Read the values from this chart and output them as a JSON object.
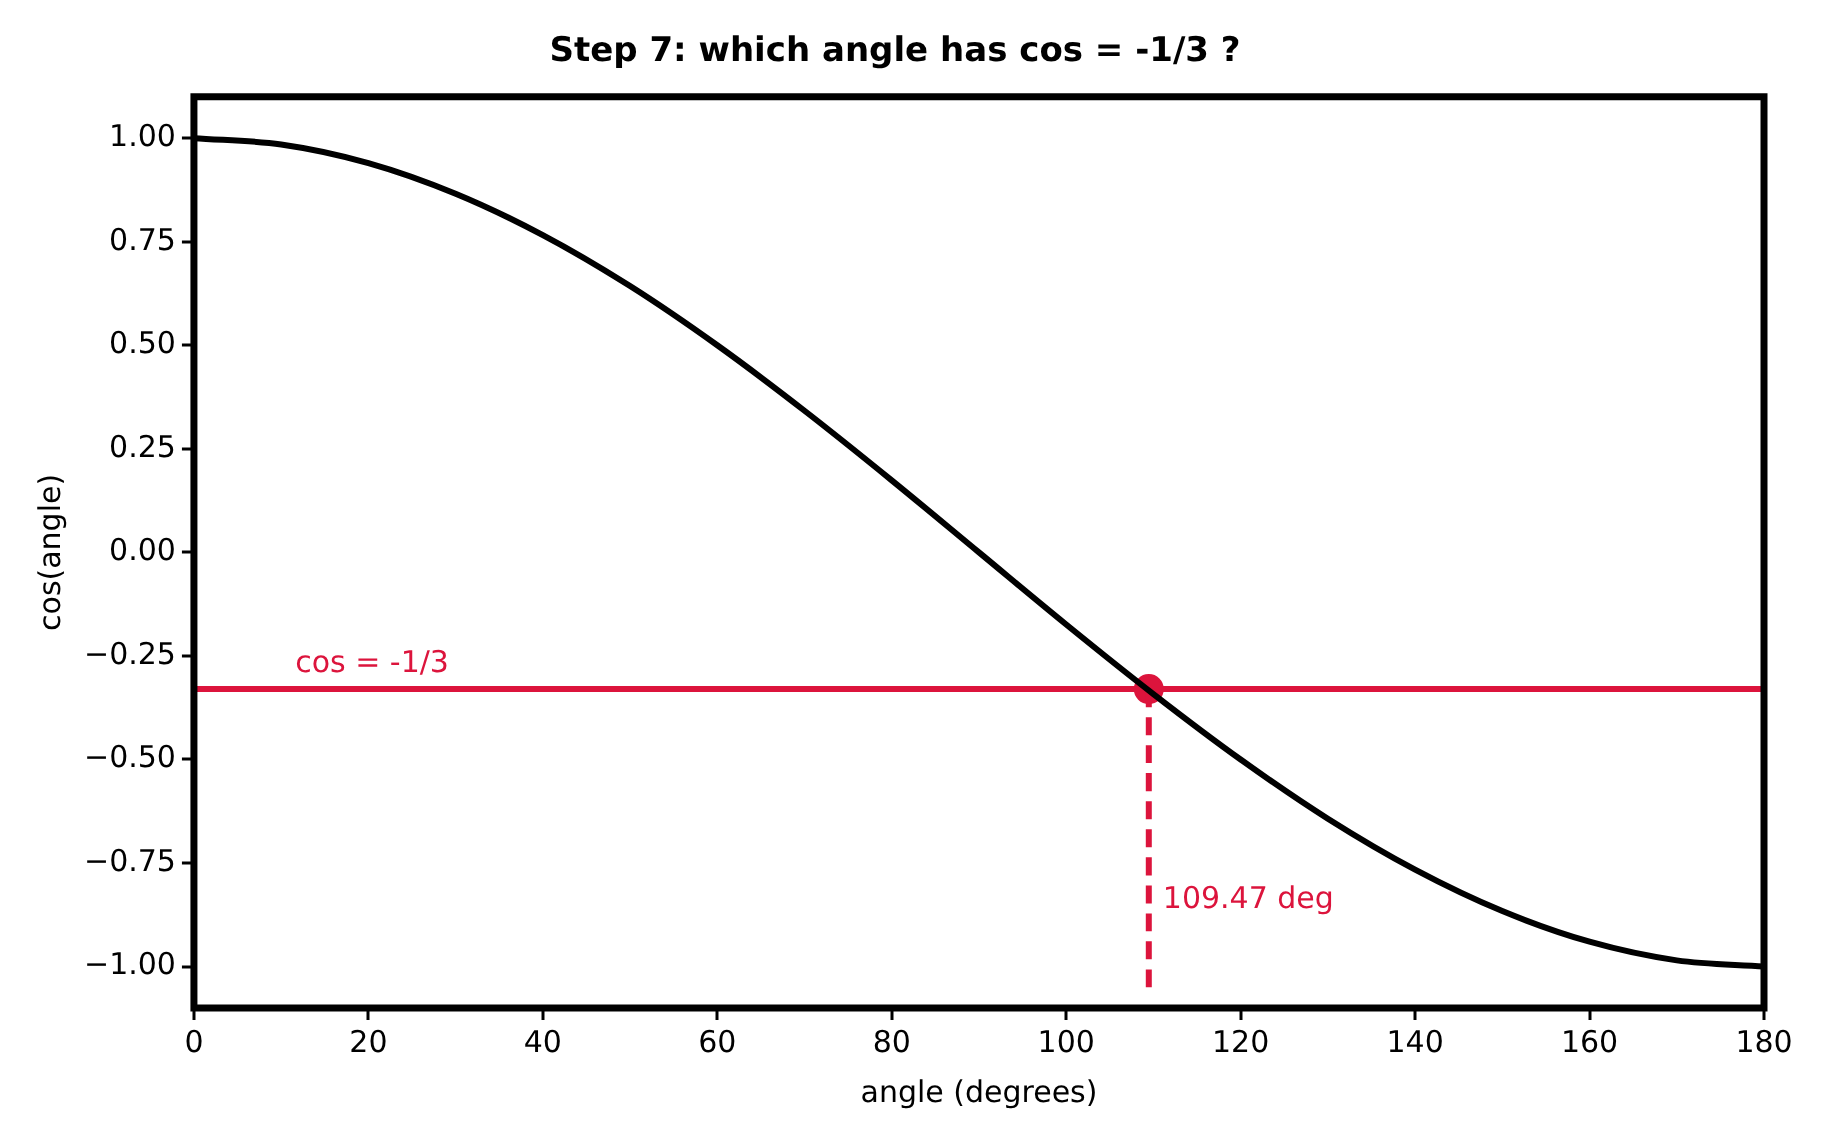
{
  "chart_data": {
    "type": "line",
    "title": "Step 7: which angle has cos = -1/3 ?",
    "xlabel": "angle (degrees)",
    "ylabel": "cos(angle)",
    "xlim": [
      0,
      180
    ],
    "xticks": [
      0,
      20,
      40,
      60,
      80,
      100,
      120,
      140,
      160,
      180
    ],
    "ylim": [
      -1.1,
      1.1
    ],
    "yticks": [
      {
        "value": -1,
        "label": "−1.00"
      },
      {
        "value": -0.75,
        "label": "−0.75"
      },
      {
        "value": -0.5,
        "label": "−0.50"
      },
      {
        "value": -0.25,
        "label": "−0.25"
      },
      {
        "value": 0,
        "label": "0.00"
      },
      {
        "value": 0.25,
        "label": "0.25"
      },
      {
        "value": 0.5,
        "label": "0.50"
      },
      {
        "value": 0.75,
        "label": "0.75"
      },
      {
        "value": 1,
        "label": "1.00"
      }
    ],
    "grid": false,
    "legend": false,
    "series": [
      {
        "type": "line",
        "color": "#000000",
        "marker": "none",
        "x": [
          0,
          10,
          20,
          30,
          40,
          50,
          60,
          70,
          80,
          90,
          100,
          110,
          120,
          130,
          140,
          150,
          160,
          170,
          180
        ],
        "values": [
          1,
          0.985,
          0.94,
          0.866,
          0.766,
          0.643,
          0.5,
          0.342,
          0.174,
          0,
          -0.174,
          -0.342,
          -0.5,
          -0.643,
          -0.766,
          -0.866,
          -0.94,
          -0.985,
          -1
        ]
      },
      {
        "type": "line",
        "color": "#dc143c",
        "marker": "none",
        "line_style": "dashed",
        "x": [
          109.47,
          109.47
        ],
        "values": [
          -1.05,
          -0.33
        ]
      },
      {
        "type": "scatter",
        "color": "#dc143c",
        "marker": "circle",
        "x": [
          109.47
        ],
        "values": [
          -0.33
        ]
      }
    ],
    "ref_lines": [
      {
        "axis": "y",
        "value": -0.33,
        "color": "#dc143c"
      }
    ],
    "annotations": [
      {
        "text": "cos = -1/3",
        "x": 10,
        "y": -0.33
      },
      {
        "text": "109.47 deg",
        "x": 109.47,
        "y": -0.9
      }
    ]
  }
}
